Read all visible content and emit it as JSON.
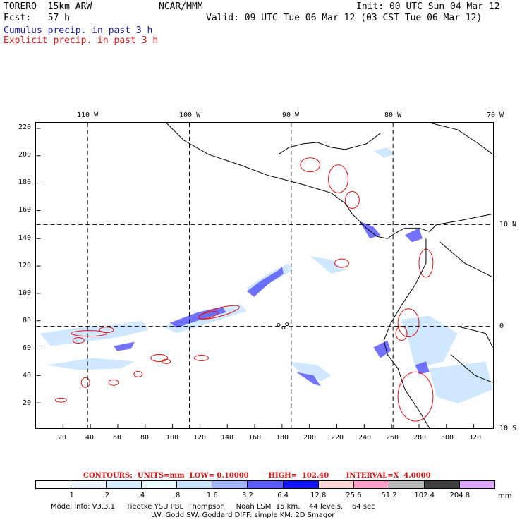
{
  "header": {
    "model": "TORERO  15km ARW",
    "center": "NCAR/MMM",
    "init": "Init: 00 UTC Sun 04 Mar 12",
    "fcst": "Fcst:   57 h",
    "valid": "Valid: 09 UTC Tue 06 Mar 12 (03 CST Tue 06 Mar 12)"
  },
  "fields": {
    "cumulus": "Cumulus precip. in past 3 h",
    "explicit": "Explicit precip. in past 3 h"
  },
  "axes": {
    "lon_labels": [
      "110 W",
      "100 W",
      "90 W",
      "80 W",
      "70 W"
    ],
    "lat_labels": [
      "10 N",
      "0",
      "10 S"
    ],
    "y_ticks": [
      "220",
      "200",
      "180",
      "160",
      "140",
      "120",
      "100",
      "80",
      "60",
      "40",
      "20"
    ],
    "x_ticks": [
      "20",
      "40",
      "60",
      "80",
      "100",
      "120",
      "140",
      "160",
      "180",
      "200",
      "220",
      "240",
      "260",
      "280",
      "300",
      "320"
    ]
  },
  "legend": {
    "contours": "CONTOURS:  UNITS=mm  LOW= 0.10000        HIGH=  102.40       INTERVAL=X  4.0000",
    "units": "mm",
    "levels": [
      ".1",
      ".2",
      ".4",
      ".8",
      "1.6",
      "3.2",
      "6.4",
      "12.8",
      "25.6",
      "51.2",
      "102.4",
      "204.8"
    ],
    "colors": [
      "#ffffff",
      "#ebf4ff",
      "#d7ecff",
      "#eafcff",
      "#c8e4ff",
      "#a2b4ff",
      "#5a5aff",
      "#1414ff",
      "#ffd7d7",
      "#ff9ec8",
      "#b8b8b8",
      "#404040",
      "#dca6ff"
    ]
  },
  "model_info": {
    "line1": "Model Info: V3.3.1     Tiedtke YSU PBL  Thompson     Noah LSM  15 km,    44 levels,    64 sec",
    "line2": "LW: Godd SW: Goddard DIFF: simple KM: 2D Smagor"
  }
}
